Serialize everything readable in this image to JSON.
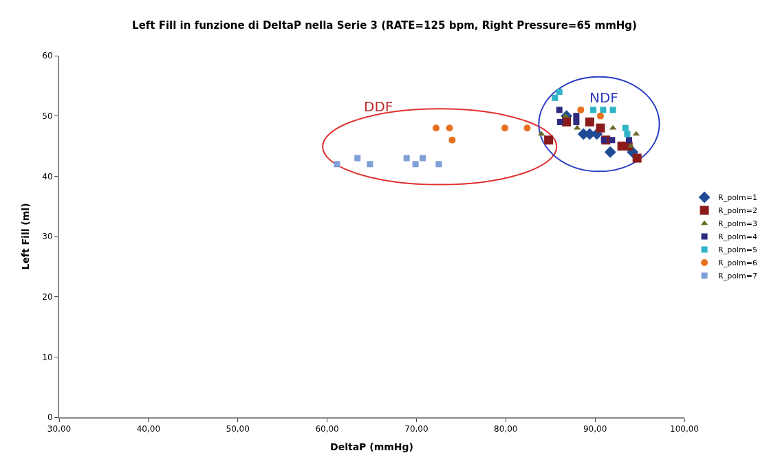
{
  "chart_data": {
    "type": "scatter",
    "title": "Left Fill in funzione di DeltaP nella Serie 3 (RATE=125 bpm, Right Pressure=65 mmHg)",
    "xlabel": "DeltaP (mmHg)",
    "ylabel": "Left Fill (ml)",
    "xlim": [
      30,
      100
    ],
    "xticks": [
      {
        "value": 30,
        "label": "30,00"
      },
      {
        "value": 40,
        "label": "40,00"
      },
      {
        "value": 50,
        "label": "50,00"
      },
      {
        "value": 60,
        "label": "60,00"
      },
      {
        "value": 70,
        "label": "70,00"
      },
      {
        "value": 80,
        "label": "80,00"
      },
      {
        "value": 90,
        "label": "90,00"
      },
      {
        "value": 100,
        "label": "100,00"
      }
    ],
    "ylim": [
      0,
      60
    ],
    "yticks": [
      0,
      10,
      20,
      30,
      40,
      50,
      60
    ],
    "grid": false,
    "legend": "right",
    "annotations": [
      "DDF",
      "NDF"
    ],
    "series": [
      {
        "name": "R_polm=1",
        "color": "#1f4b96",
        "marker": "diamond",
        "x": [
          86.8,
          88.7,
          89.4,
          90.2,
          91.7,
          94.2
        ],
        "values": [
          50,
          47,
          47,
          47,
          44,
          44
        ]
      },
      {
        "name": "R_polm=2",
        "color": "#8b1a1a",
        "marker": "square",
        "x": [
          84.8,
          86.8,
          89.4,
          90.6,
          91.2,
          93.0,
          93.7,
          94.7
        ],
        "values": [
          46,
          49,
          49,
          48,
          46,
          45,
          45,
          43
        ]
      },
      {
        "name": "R_polm=3",
        "color": "#6b6b2a",
        "marker": "triangle",
        "x": [
          84.0,
          86.7,
          88.0,
          92.0,
          94.6,
          94.0
        ],
        "values": [
          47,
          50,
          48,
          48,
          47,
          45
        ]
      },
      {
        "name": "R_polm=4",
        "color": "#2e2a7e",
        "marker": "square",
        "x": [
          86.0,
          86.1,
          87.9,
          87.9,
          91.0,
          91.9,
          93.8
        ],
        "values": [
          51,
          49,
          50,
          49,
          46,
          46,
          46
        ]
      },
      {
        "name": "R_polm=5",
        "color": "#2fb3c8",
        "marker": "square",
        "x": [
          85.5,
          86.0,
          89.8,
          90.9,
          92.0,
          93.4,
          93.6
        ],
        "values": [
          53,
          54,
          51,
          51,
          51,
          48,
          47
        ]
      },
      {
        "name": "R_polm=6",
        "color": "#e8701e",
        "marker": "circle",
        "x": [
          72.2,
          73.7,
          74.0,
          79.9,
          82.4,
          88.4,
          90.6
        ],
        "values": [
          48,
          48,
          46,
          48,
          48,
          51,
          50
        ]
      },
      {
        "name": "R_polm=7",
        "color": "#7f9fd8",
        "marker": "square",
        "x": [
          61.1,
          63.4,
          64.8,
          68.9,
          69.9,
          70.7,
          72.5
        ],
        "values": [
          42,
          43,
          42,
          43,
          42,
          43,
          42
        ]
      }
    ]
  }
}
